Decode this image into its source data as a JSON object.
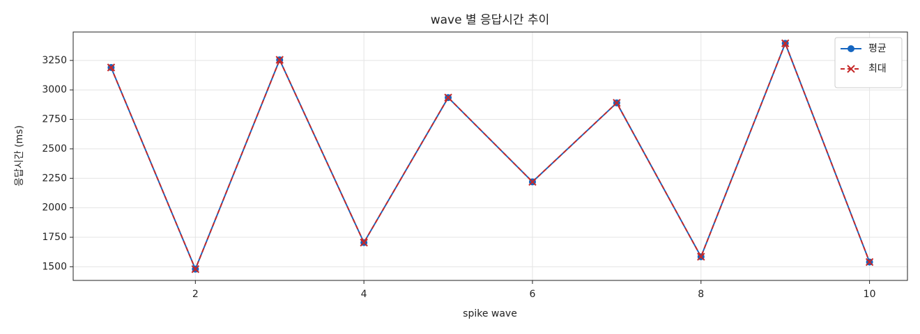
{
  "chart_data": {
    "type": "line",
    "title": "wave 별 응답시간 추이",
    "x_label": "spike wave",
    "y_label": "응답시간 (ms)",
    "x": [
      1,
      2,
      3,
      4,
      5,
      6,
      7,
      8,
      9,
      10
    ],
    "series": [
      {
        "name": "평균",
        "color": "#1565c0",
        "marker": "o",
        "linestyle": "solid",
        "values": [
          3190,
          1480,
          3255,
          1705,
          2935,
          2220,
          2890,
          1585,
          3395,
          1540
        ]
      },
      {
        "name": "최대",
        "color": "#c62828",
        "marker": "x",
        "linestyle": "dashed",
        "values": [
          3190,
          1480,
          3255,
          1705,
          2935,
          2220,
          2890,
          1585,
          3395,
          1540
        ]
      }
    ],
    "xlim": [
      0.55,
      10.45
    ],
    "xticks": [
      2,
      4,
      6,
      8,
      10
    ],
    "ylim": [
      1384,
      3491
    ],
    "yticks": [
      1500,
      1750,
      2000,
      2250,
      2500,
      2750,
      3000,
      3250
    ],
    "grid": true,
    "legend": "upper right"
  }
}
